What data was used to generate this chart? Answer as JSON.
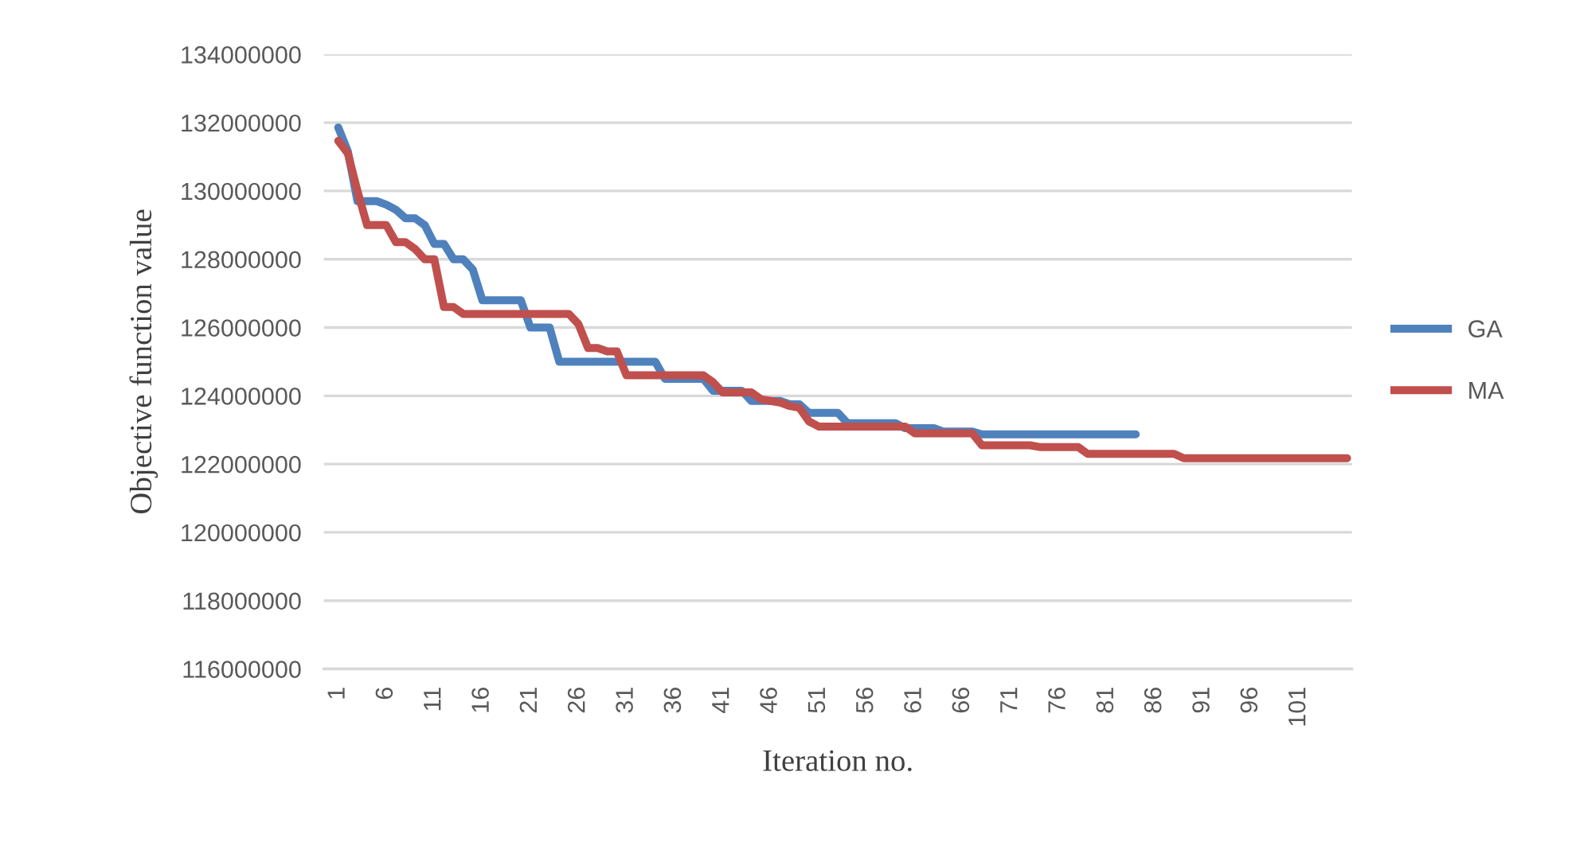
{
  "chart_data": {
    "type": "line",
    "xlabel": "Iteration no.",
    "ylabel": "Objective function value",
    "categories": [
      "1",
      null,
      null,
      null,
      null,
      "6",
      null,
      null,
      null,
      null,
      "11",
      null,
      null,
      null,
      null,
      "16",
      null,
      null,
      null,
      null,
      "21",
      null,
      null,
      null,
      null,
      "26",
      null,
      null,
      null,
      null,
      "31",
      null,
      null,
      null,
      null,
      "36",
      null,
      null,
      null,
      null,
      "41",
      null,
      null,
      null,
      null,
      "46",
      null,
      null,
      null,
      null,
      "51",
      null,
      null,
      null,
      null,
      "56",
      null,
      null,
      null,
      null,
      "61",
      null,
      null,
      null,
      null,
      "66",
      null,
      null,
      null,
      null,
      "71",
      null,
      null,
      null,
      null,
      "76",
      null,
      null,
      null,
      null,
      "81",
      null,
      null,
      null,
      null,
      "86",
      null,
      null,
      null,
      null,
      "91",
      null,
      null,
      null,
      null,
      "96",
      null,
      null,
      null,
      null,
      "101",
      null,
      null,
      null,
      null,
      null
    ],
    "series": [
      {
        "name": "GA",
        "color": "#4f81bd",
        "values": [
          131860000,
          131160000,
          129700000,
          129700000,
          129700000,
          129600000,
          129450000,
          129200000,
          129200000,
          129000000,
          128450000,
          128450000,
          128000000,
          128000000,
          127700000,
          126800000,
          126800000,
          126800000,
          126800000,
          126800000,
          126000000,
          126000000,
          126000000,
          125000000,
          125000000,
          125000000,
          125000000,
          125000000,
          125000000,
          125000000,
          125000000,
          125000000,
          125000000,
          125000000,
          124500000,
          124500000,
          124500000,
          124500000,
          124500000,
          124150000,
          124150000,
          124150000,
          124150000,
          123850000,
          123850000,
          123850000,
          123850000,
          123750000,
          123750000,
          123500000,
          123500000,
          123500000,
          123500000,
          123200000,
          123200000,
          123200000,
          123200000,
          123200000,
          123200000,
          123050000,
          123050000,
          123050000,
          123050000,
          122950000,
          122950000,
          122950000,
          122950000,
          122870000,
          122870000,
          122870000,
          122870000,
          122870000,
          122870000,
          122870000,
          122870000,
          122870000,
          122870000,
          122870000,
          122870000,
          122870000,
          122870000,
          122870000,
          122870000,
          122870000,
          null,
          null,
          null,
          null,
          null,
          null,
          null,
          null,
          null,
          null,
          null,
          null,
          null,
          null,
          null,
          null,
          null,
          null,
          null,
          null,
          null,
          null
        ]
      },
      {
        "name": "MA",
        "color": "#c0504d",
        "values": [
          131470000,
          131100000,
          130000000,
          129000000,
          129000000,
          129000000,
          128500000,
          128500000,
          128300000,
          128000000,
          128000000,
          126600000,
          126600000,
          126400000,
          126400000,
          126400000,
          126400000,
          126400000,
          126400000,
          126400000,
          126400000,
          126400000,
          126400000,
          126400000,
          126400000,
          126100000,
          125400000,
          125400000,
          125300000,
          125300000,
          124600000,
          124600000,
          124600000,
          124600000,
          124600000,
          124600000,
          124600000,
          124600000,
          124600000,
          124400000,
          124100000,
          124100000,
          124100000,
          124100000,
          123900000,
          123850000,
          123800000,
          123700000,
          123650000,
          123250000,
          123100000,
          123100000,
          123100000,
          123100000,
          123100000,
          123100000,
          123100000,
          123100000,
          123100000,
          123100000,
          122900000,
          122900000,
          122900000,
          122900000,
          122900000,
          122900000,
          122900000,
          122550000,
          122550000,
          122550000,
          122550000,
          122550000,
          122550000,
          122500000,
          122500000,
          122500000,
          122500000,
          122500000,
          122300000,
          122300000,
          122300000,
          122300000,
          122300000,
          122300000,
          122300000,
          122300000,
          122300000,
          122300000,
          122170000,
          122170000,
          122170000,
          122170000,
          122170000,
          122170000,
          122170000,
          122170000,
          122170000,
          122170000,
          122170000,
          122170000,
          122170000,
          122170000,
          122170000,
          122170000,
          122170000,
          122170000
        ]
      }
    ],
    "ylim": [
      116000000,
      134000000
    ],
    "yticks": [
      116000000,
      118000000,
      120000000,
      122000000,
      124000000,
      126000000,
      128000000,
      130000000,
      132000000,
      134000000
    ],
    "grid": "y",
    "legend": "right",
    "marker": "none",
    "line_style": "solid"
  }
}
